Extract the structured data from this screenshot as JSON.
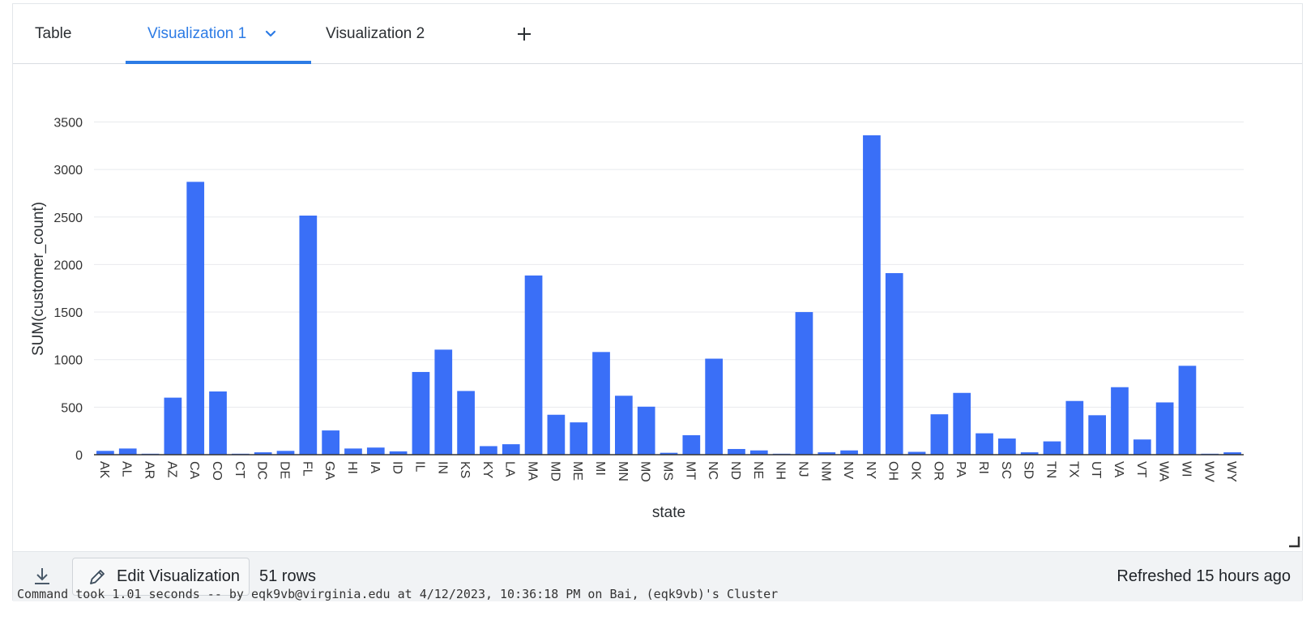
{
  "tabs": [
    {
      "label": "Table",
      "active": false
    },
    {
      "label": "Visualization 1",
      "active": true
    },
    {
      "label": "Visualization 2",
      "active": false
    }
  ],
  "icons": {
    "dropdown": "chevron-down-icon",
    "add_tab": "plus-icon",
    "download": "download-icon",
    "edit": "pencil-icon",
    "resize": "resize-handle-icon"
  },
  "footer": {
    "edit_label": "Edit Visualization",
    "rows_label": "51 rows",
    "refreshed_label": "Refreshed 15 hours ago"
  },
  "command_text": "Command took 1.01 seconds -- by eqk9vb@virginia.edu at 4/12/2023, 10:36:18 PM on Bai, (eqk9vb)'s Cluster",
  "colors": {
    "accent": "#2c7be5",
    "bar": "#3a6ff7"
  },
  "chart_data": {
    "type": "bar",
    "xlabel": "state",
    "ylabel": "SUM(customer_count)",
    "ylim": [
      0,
      3700
    ],
    "yticks": [
      0,
      500,
      1000,
      1500,
      2000,
      2500,
      3000,
      3500
    ],
    "grid": true,
    "categories": [
      "AK",
      "AL",
      "AR",
      "AZ",
      "CA",
      "CO",
      "CT",
      "DC",
      "DE",
      "FL",
      "GA",
      "HI",
      "IA",
      "ID",
      "IL",
      "IN",
      "KS",
      "KY",
      "LA",
      "MA",
      "MD",
      "ME",
      "MI",
      "MN",
      "MO",
      "MS",
      "MT",
      "NC",
      "ND",
      "NE",
      "NH",
      "NJ",
      "NM",
      "NV",
      "NY",
      "OH",
      "OK",
      "OR",
      "PA",
      "RI",
      "SC",
      "SD",
      "TN",
      "TX",
      "UT",
      "VA",
      "VT",
      "WA",
      "WI",
      "WV",
      "WY"
    ],
    "values": [
      40,
      65,
      10,
      600,
      2870,
      665,
      10,
      25,
      40,
      2515,
      255,
      65,
      75,
      35,
      870,
      1105,
      670,
      90,
      110,
      1885,
      420,
      340,
      1080,
      620,
      505,
      20,
      205,
      1010,
      60,
      45,
      10,
      1500,
      25,
      45,
      3360,
      1910,
      30,
      425,
      650,
      225,
      170,
      25,
      140,
      565,
      415,
      710,
      160,
      550,
      935,
      10,
      25
    ]
  }
}
